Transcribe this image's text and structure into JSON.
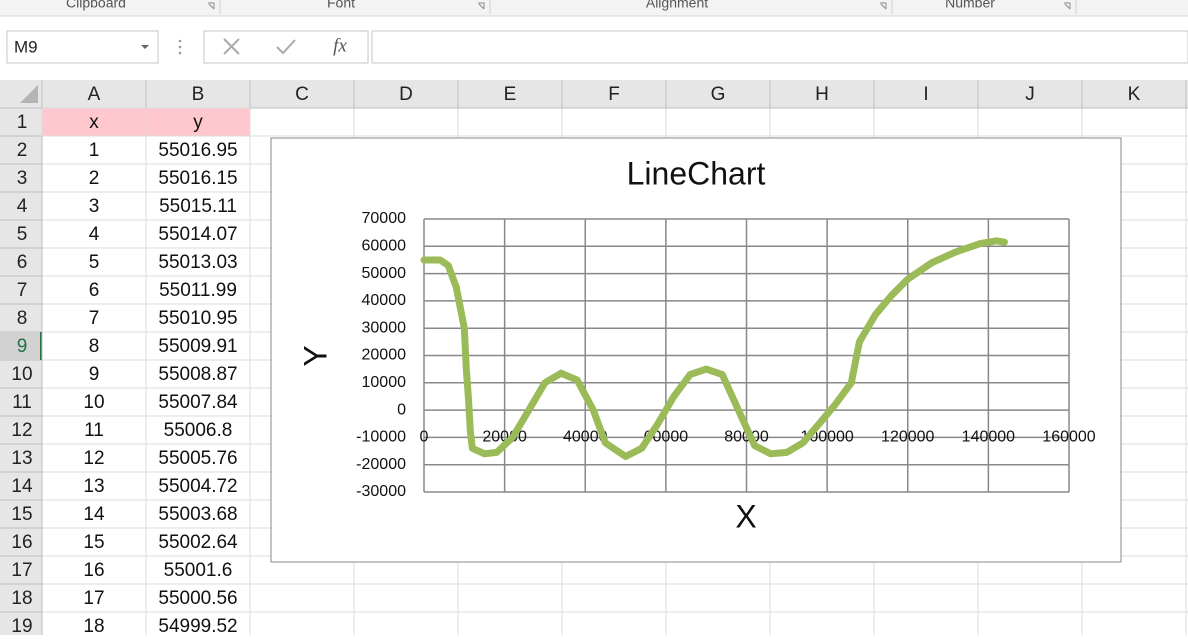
{
  "ribbon": {
    "groups": [
      "Clipboard",
      "Font",
      "Alignment",
      "Number"
    ]
  },
  "formula_bar": {
    "name_box": "M9",
    "fx": "fx"
  },
  "columns": [
    "A",
    "B",
    "C",
    "D",
    "E",
    "F",
    "G",
    "H",
    "I",
    "J",
    "K"
  ],
  "rows": [
    "1",
    "2",
    "3",
    "4",
    "5",
    "6",
    "7",
    "8",
    "9",
    "10",
    "11",
    "12",
    "13",
    "14",
    "15",
    "16",
    "17",
    "18",
    "19"
  ],
  "table": {
    "cells": [
      [
        "x",
        "y"
      ],
      [
        "1",
        "55016.95"
      ],
      [
        "2",
        "55016.15"
      ],
      [
        "3",
        "55015.11"
      ],
      [
        "4",
        "55014.07"
      ],
      [
        "5",
        "55013.03"
      ],
      [
        "6",
        "55011.99"
      ],
      [
        "7",
        "55010.95"
      ],
      [
        "8",
        "55009.91"
      ],
      [
        "9",
        "55008.87"
      ],
      [
        "10",
        "55007.84"
      ],
      [
        "11",
        "55006.8"
      ],
      [
        "12",
        "55005.76"
      ],
      [
        "13",
        "55004.72"
      ],
      [
        "14",
        "55003.68"
      ],
      [
        "15",
        "55002.64"
      ],
      [
        "16",
        "55001.6"
      ],
      [
        "17",
        "55000.56"
      ],
      [
        "18",
        "54999.52"
      ]
    ]
  },
  "chart_data": {
    "type": "line",
    "title": "LineChart",
    "x_label": "X",
    "y_label": "Y",
    "color": "#9bbb59",
    "grid": true,
    "x": [
      0,
      4000,
      6000,
      8000,
      10000,
      10500,
      11000,
      11500,
      12000,
      15000,
      18000,
      22000,
      26000,
      30000,
      34000,
      38000,
      42000,
      45000,
      50000,
      54000,
      58000,
      62000,
      66000,
      70000,
      74000,
      78000,
      82000,
      86000,
      90000,
      94000,
      98000,
      102000,
      106000,
      108000,
      112000,
      116000,
      120000,
      126000,
      132000,
      138000,
      142000,
      144000
    ],
    "values": [
      55000,
      55000,
      53000,
      45000,
      30000,
      15000,
      5000,
      -8000,
      -14000,
      -16000,
      -15500,
      -10000,
      0,
      10000,
      13500,
      11000,
      0,
      -12000,
      -17000,
      -14000,
      -5000,
      5000,
      13000,
      15000,
      13000,
      0,
      -13000,
      -16000,
      -15500,
      -12000,
      -5000,
      2000,
      10000,
      25000,
      35000,
      42000,
      48000,
      54000,
      58000,
      61000,
      62000,
      61500
    ],
    "xlim": [
      0,
      160000
    ],
    "xticks": [
      0,
      20000,
      40000,
      60000,
      80000,
      100000,
      120000,
      140000,
      160000
    ],
    "ylim": [
      -30000,
      70000
    ],
    "yticks": [
      -30000,
      -20000,
      -10000,
      0,
      10000,
      20000,
      30000,
      40000,
      50000,
      60000,
      70000
    ]
  }
}
